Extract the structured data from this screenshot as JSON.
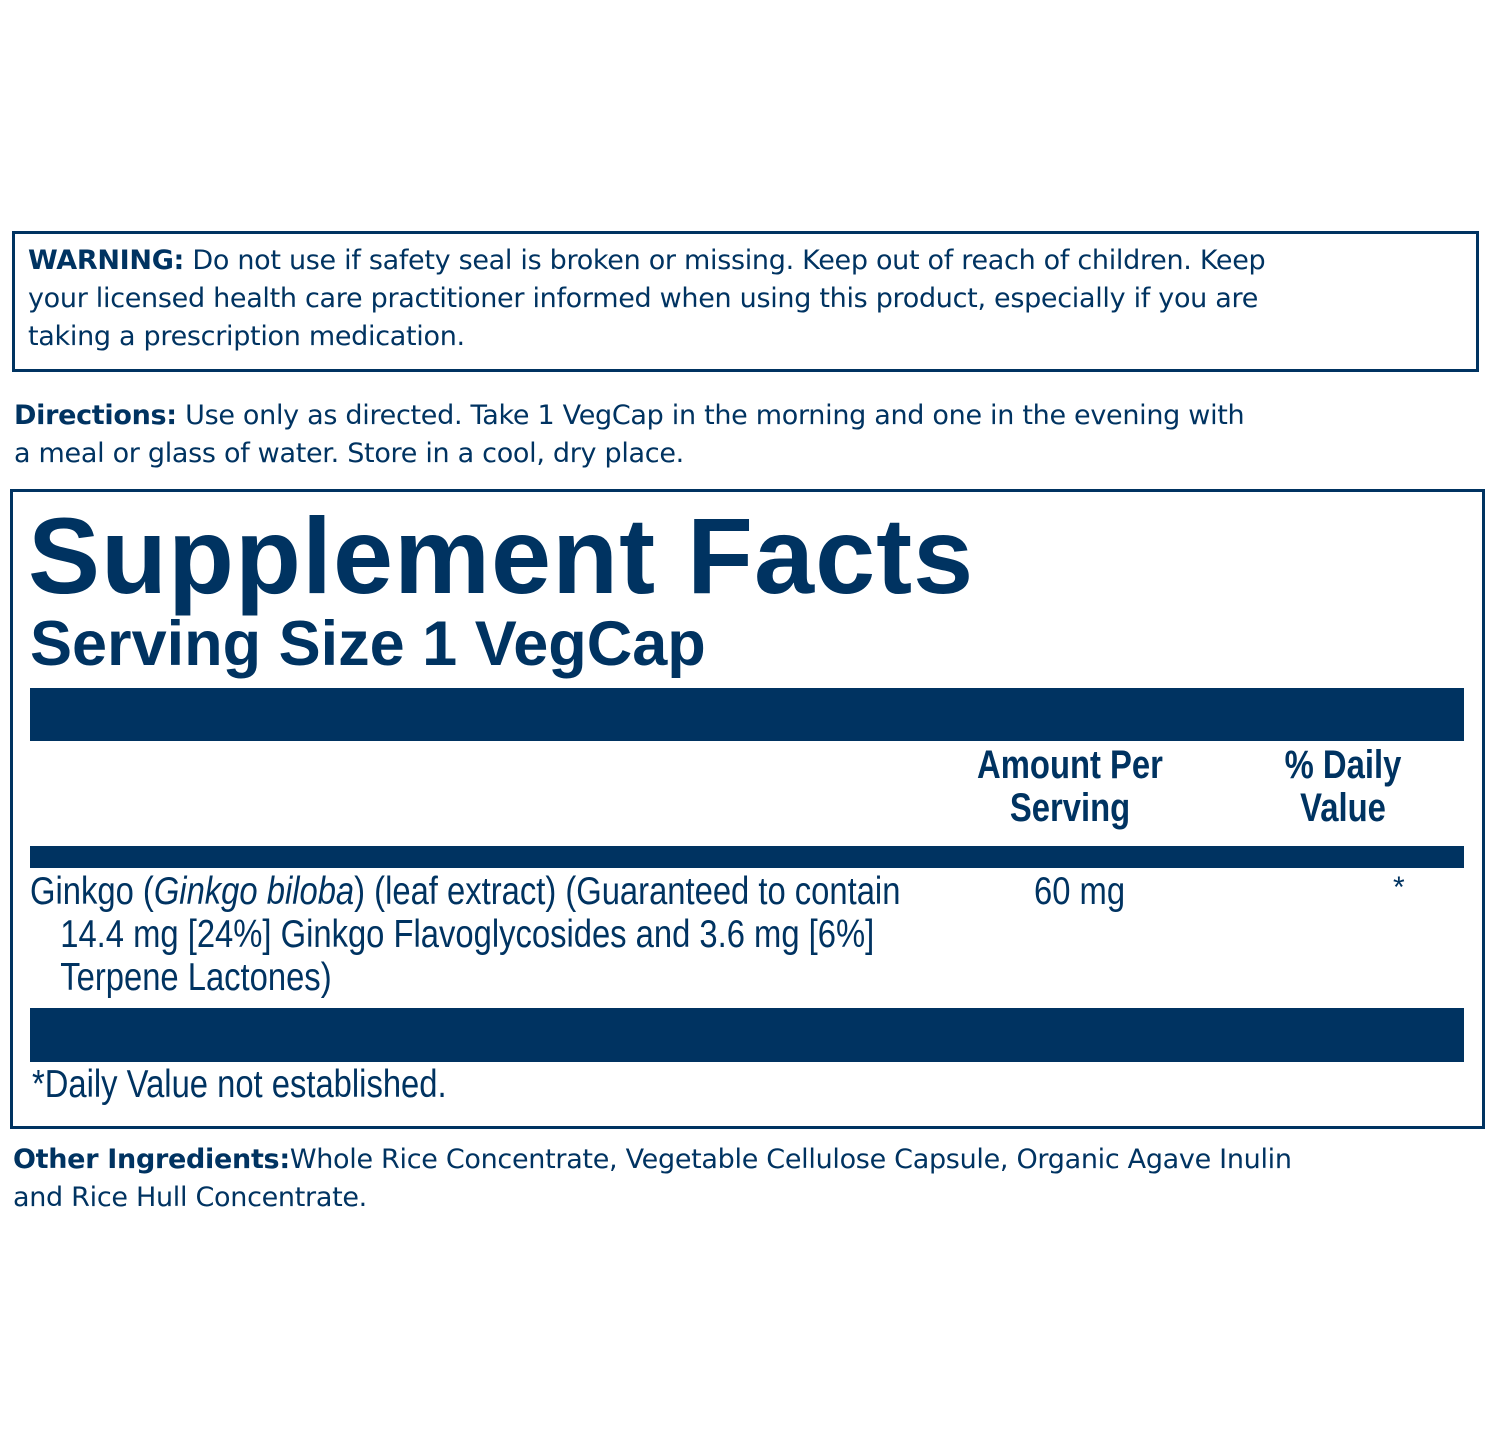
{
  "warning": {
    "label": "WARNING:",
    "lines": [
      "Do not use if safety seal is broken or missing. Keep out of reach of children. Keep",
      "your licensed health care practitioner informed when using this product, especially if you are",
      "taking a prescription medication."
    ]
  },
  "directions": {
    "label": "Directions:",
    "lines": [
      "Use only as directed. Take 1 VegCap in the morning and one in the evening with",
      "a meal or glass of water. Store in a cool, dry place."
    ]
  },
  "facts": {
    "title": "Supplement Facts",
    "serving_size": "Serving Size 1 VegCap",
    "col_amount": [
      "Amount Per",
      "Serving"
    ],
    "col_dv": [
      "% Daily",
      "Value"
    ],
    "ingredient": {
      "name": "Ginkgo (",
      "latin": "Ginkgo biloba",
      "rest": ") (leaf extract) (Guaranteed to contain",
      "line2": "14.4 mg [24%] Ginkgo Flavoglycosides and 3.6 mg [6%]",
      "line3": "Terpene Lactones)",
      "amount": "60 mg",
      "dv": "*"
    },
    "footnote": "*Daily Value not established."
  },
  "other": {
    "label": "Other Ingredients:",
    "lines": [
      "Whole Rice Concentrate, Vegetable Cellulose Capsule, Organic Agave Inulin",
      "and Rice Hull Concentrate."
    ]
  },
  "colors": {
    "brand": "#003361"
  }
}
